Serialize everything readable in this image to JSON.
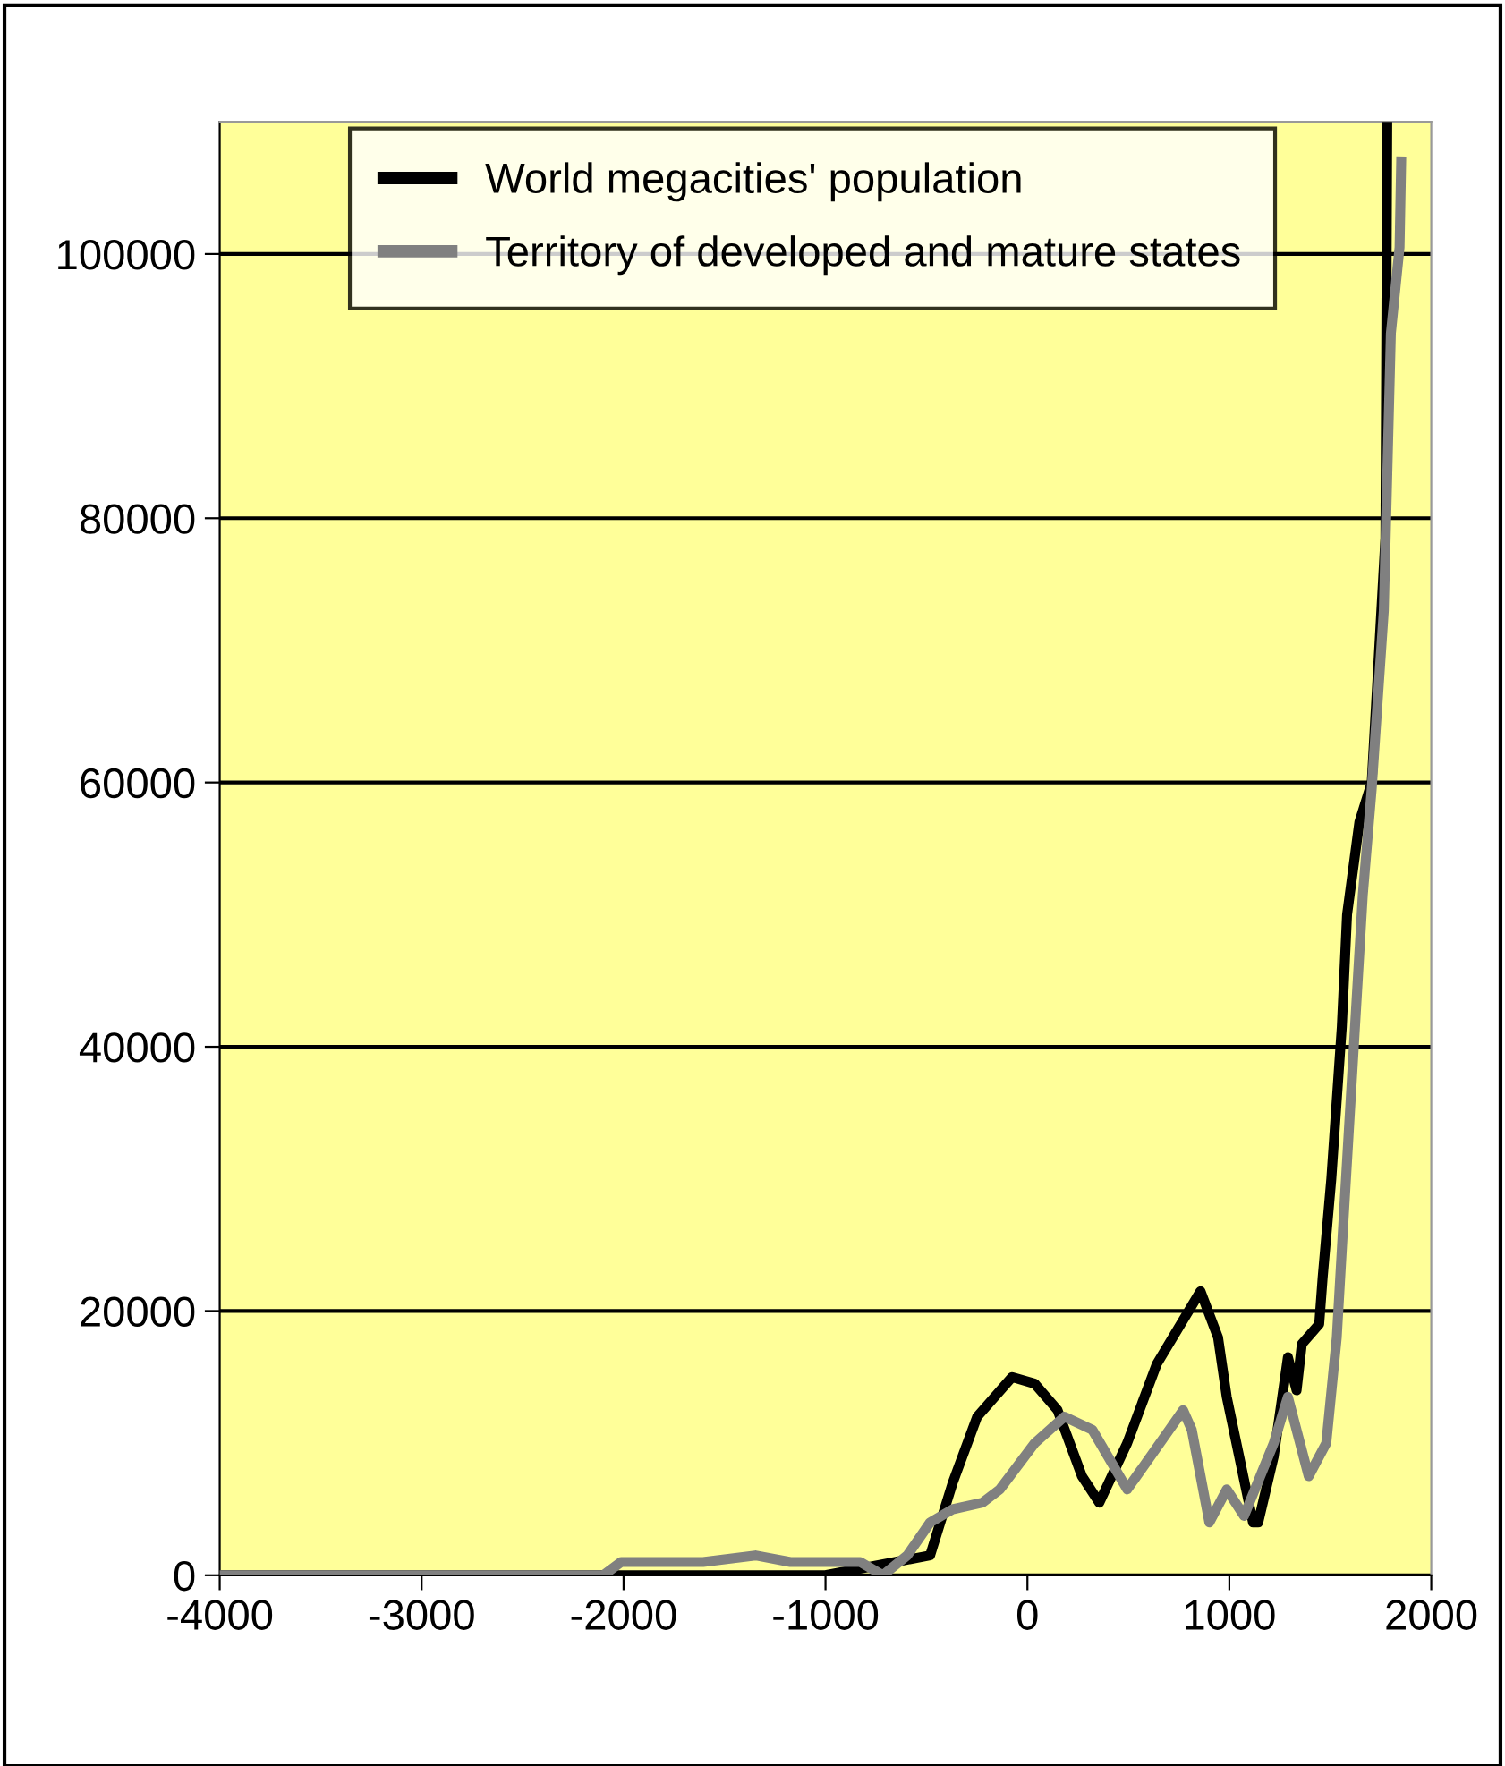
{
  "chart_data": {
    "type": "line",
    "xlim": [
      -4000,
      2000
    ],
    "xticks": [
      -4000,
      -3000,
      -2000,
      -1000,
      0,
      1000,
      2000
    ],
    "ylim": [
      0,
      110000
    ],
    "yticks": [
      0,
      20000,
      40000,
      60000,
      80000,
      100000
    ],
    "grid": "y",
    "legend": "top left",
    "marker": "none",
    "line_style": "solid",
    "series": [
      {
        "name": "World megacities' population",
        "color": "#000000",
        "x": [
          -4000,
          -1000,
          -655,
          -482,
          -370,
          -249,
          -76,
          36,
          149,
          270,
          356,
          494,
          641,
          857,
          944,
          987,
          1117,
          1143,
          1220,
          1290,
          1333,
          1359,
          1445,
          1462,
          1505,
          1557,
          1583,
          1644,
          1705,
          1773,
          1782
        ],
        "values": [
          0,
          0,
          1000,
          1500,
          7000,
          12000,
          15000,
          14500,
          12500,
          7500,
          5500,
          10000,
          16000,
          21500,
          18000,
          13500,
          4000,
          4000,
          9000,
          16500,
          14000,
          17500,
          19000,
          22500,
          30000,
          41500,
          50000,
          57000,
          60000,
          78500,
          110000
        ]
      },
      {
        "name": "Territory of developed and mature states",
        "color": "#808080",
        "x": [
          -4000,
          -2100,
          -2012,
          -1606,
          -1347,
          -1174,
          -828,
          -716,
          -595,
          -482,
          -370,
          -223,
          -137,
          36,
          183,
          322,
          494,
          702,
          771,
          814,
          901,
          987,
          1073,
          1220,
          1290,
          1393,
          1480,
          1532,
          1566,
          1661,
          1705,
          1765,
          1800,
          1843,
          1851
        ],
        "values": [
          0,
          0,
          1000,
          1000,
          1500,
          1000,
          1000,
          0,
          1500,
          4000,
          5000,
          5500,
          6500,
          10000,
          12000,
          11000,
          6500,
          11000,
          12500,
          11000,
          4000,
          6500,
          4500,
          10000,
          13500,
          7500,
          10000,
          18000,
          27000,
          51500,
          59500,
          73000,
          94000,
          100500,
          107000
        ]
      }
    ]
  }
}
